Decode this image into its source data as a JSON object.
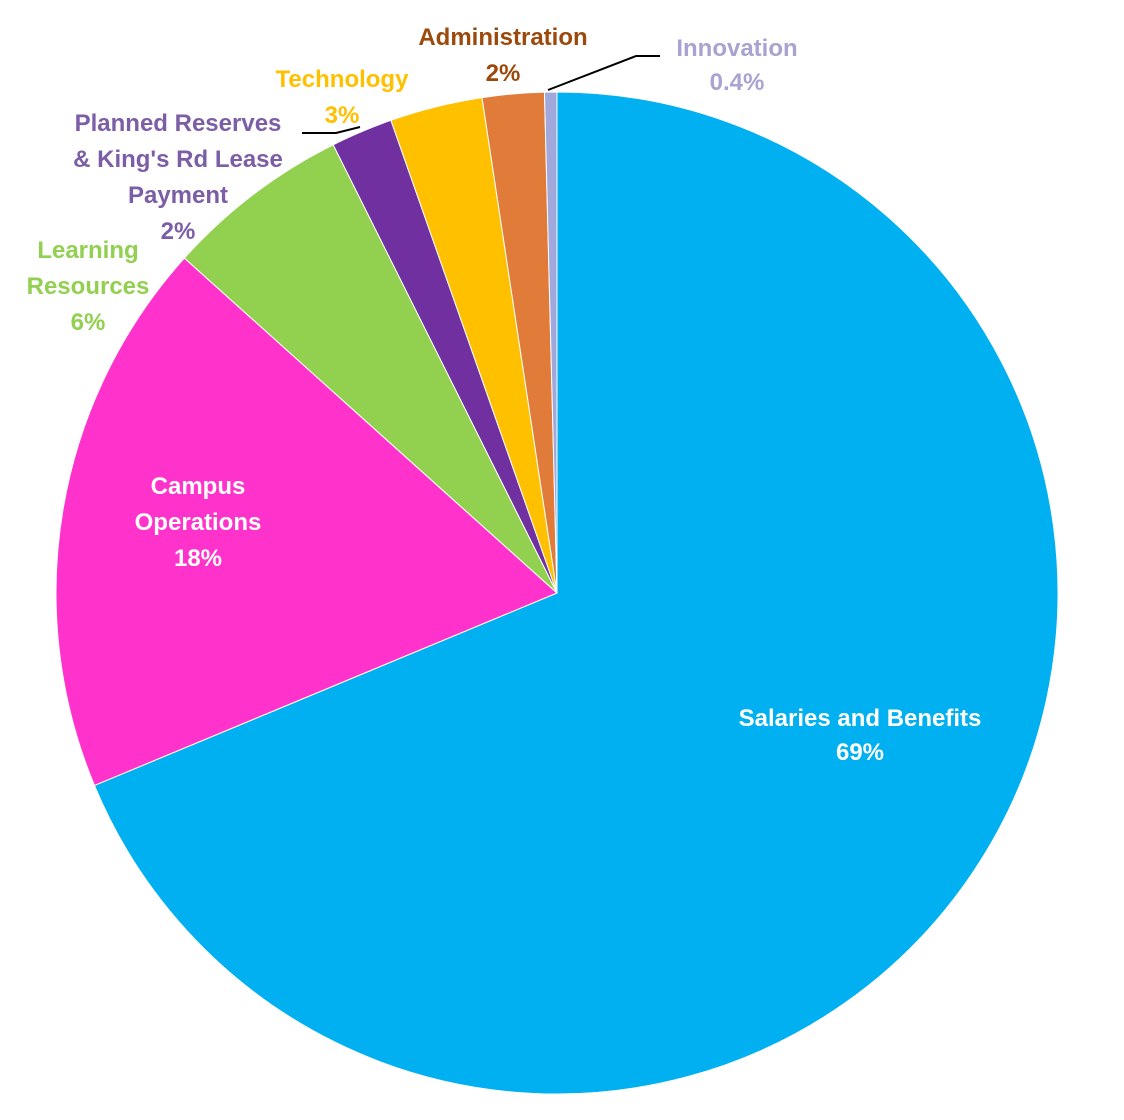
{
  "chart_data": {
    "type": "pie",
    "start": "12 o'clock, clockwise",
    "slices": [
      {
        "name": "Salaries and Benefits",
        "label_lines": [
          "Salaries and Benefits"
        ],
        "value": 69,
        "percent_label": "69%",
        "color": "#00b0f0",
        "label_color": "#ffffff"
      },
      {
        "name": "Campus Operations",
        "label_lines": [
          "Campus",
          "Operations"
        ],
        "value": 18,
        "percent_label": "18%",
        "color": "#ff33cc",
        "label_color": "#ffffff"
      },
      {
        "name": "Learning Resources",
        "label_lines": [
          "Learning",
          "Resources"
        ],
        "value": 6,
        "percent_label": "6%",
        "color": "#92d050",
        "label_color": "#92d050"
      },
      {
        "name": "Planned Reserves & King's Rd Lease Payment",
        "label_lines": [
          "Planned Reserves",
          "& King's Rd Lease",
          "Payment"
        ],
        "value": 2,
        "percent_label": "2%",
        "color": "#7030a0",
        "label_color": "#7b5ea6"
      },
      {
        "name": "Technology",
        "label_lines": [
          "Technology"
        ],
        "value": 3,
        "percent_label": "3%",
        "color": "#ffc000",
        "label_color": "#ffc000"
      },
      {
        "name": "Administration",
        "label_lines": [
          "Administration"
        ],
        "value": 2,
        "percent_label": "2%",
        "color": "#e07b39",
        "label_color": "#9c4a0c"
      },
      {
        "name": "Innovation",
        "label_lines": [
          "Innovation"
        ],
        "value": 0.4,
        "percent_label": "0.4%",
        "color": "#a0a8dc",
        "label_color": "#a8a3d1"
      }
    ]
  }
}
